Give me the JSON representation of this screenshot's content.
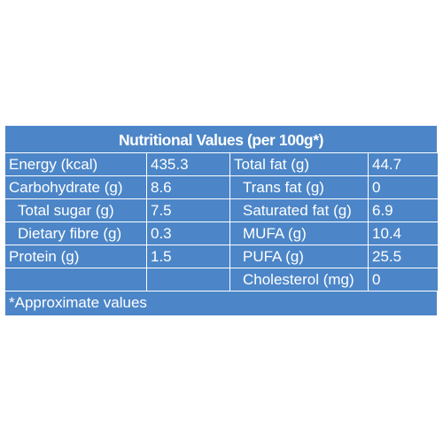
{
  "title": "Nutritional Values (per 100g*)",
  "rows": [
    {
      "left_label": "Energy (kcal)",
      "left_value": "435.3",
      "right_label": "Total fat (g)",
      "right_value": "44.7"
    },
    {
      "left_label": "Carbohydrate (g)",
      "left_value": "8.6",
      "right_label": "Trans fat (g)",
      "right_value": "0"
    },
    {
      "left_label": "Total sugar (g)",
      "left_value": "7.5",
      "right_label": "Saturated fat (g)",
      "right_value": "6.9"
    },
    {
      "left_label": "Dietary fibre (g)",
      "left_value": "0.3",
      "right_label": "MUFA (g)",
      "right_value": "10.4"
    },
    {
      "left_label": "Protein (g)",
      "left_value": "1.5",
      "right_label": "PUFA (g)",
      "right_value": "25.5"
    },
    {
      "left_label": "",
      "left_value": "",
      "right_label": "Cholesterol (mg)",
      "right_value": "0"
    }
  ],
  "footnote": "*Approximate values",
  "colors": {
    "panel_background": "#4c86c8",
    "text": "#ffffff",
    "border": "#ffffff"
  }
}
